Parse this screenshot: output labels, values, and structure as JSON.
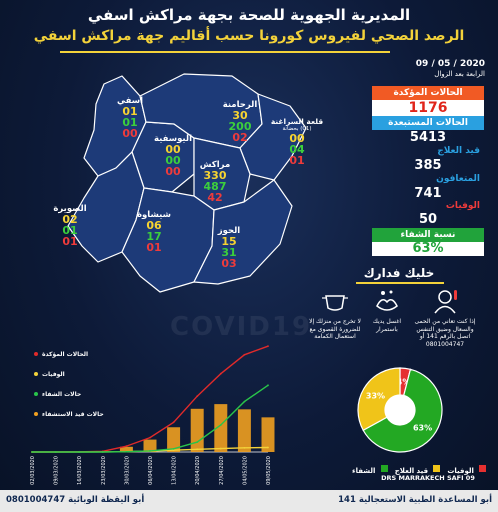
{
  "header": {
    "title": "المديرية الجهوية للصحة بجهة مراكش اسفي",
    "subtitle": "الرصد الصحي لفيروس كورونا حسب أقاليم جهة مراكش اسفي"
  },
  "date": {
    "value": "09 / 05 / 2020",
    "time": "الرابعة بعد الزوال"
  },
  "stats": {
    "confirmed_label": "الحالات المؤكدة",
    "confirmed": "1176",
    "excluded_label": "الحالات المستبعدة",
    "excluded": "5413",
    "treatment_label": "قيد العلاج",
    "treatment": "385",
    "recovered_label": "المتعافون",
    "recovered": "741",
    "deaths_label": "الوفيات",
    "deaths": "50",
    "recovery_rate_label": "نسبة الشفاء",
    "recovery_rate": "63%"
  },
  "regions": [
    {
      "name": "اسفي",
      "confirmed": "01",
      "recovered": "01",
      "deaths": "00"
    },
    {
      "name": "اليوسفية",
      "confirmed": "00",
      "recovered": "00",
      "deaths": "00"
    },
    {
      "name": "الرحامنة",
      "confirmed": "30",
      "recovered": "200",
      "deaths": "02"
    },
    {
      "name": "قلعة السراغنة",
      "extra": "(01) بحضانة",
      "confirmed": "00",
      "recovered": "04",
      "deaths": "01"
    },
    {
      "name": "مراكش",
      "confirmed": "330",
      "recovered": "487",
      "deaths": "42"
    },
    {
      "name": "الصويرة",
      "confirmed": "02",
      "recovered": "01",
      "deaths": "01"
    },
    {
      "name": "شيشاوة",
      "confirmed": "06",
      "recovered": "17",
      "deaths": "01"
    },
    {
      "name": "الحوز",
      "confirmed": "15",
      "recovered": "31",
      "deaths": "03"
    }
  ],
  "awareness": {
    "title": "خليك فدارك",
    "items": [
      "إذا كنت تعاني من الحمى والسعال وضيق التنفس اتصل بالرقم 141 أو 0801004747",
      "اغسل يديك باستمرار",
      "لا تخرج من منزلك إلا للضرورة القصوى مع استعمال الكمامة"
    ],
    "icons": [
      "fever-icon",
      "handwash-icon",
      "mask-icon"
    ]
  },
  "watermark": "COVID19",
  "chart_data": {
    "type": "line",
    "x": [
      "02/03/2020",
      "09/03/2020",
      "16/03/2020",
      "23/03/2020",
      "30/03/2020",
      "06/04/2020",
      "13/04/2020",
      "20/04/2020",
      "27/04/2020",
      "04/05/2020",
      "09/05/2020"
    ],
    "series": [
      {
        "name": "الحالات المؤكدة",
        "color": "#e02a2a",
        "values": [
          0,
          1,
          2,
          8,
          65,
          160,
          330,
          620,
          870,
          1080,
          1176
        ]
      },
      {
        "name": "الوفيات",
        "color": "#f3d23a",
        "values": [
          0,
          0,
          0,
          1,
          4,
          10,
          20,
          30,
          38,
          46,
          50
        ]
      },
      {
        "name": "حالات الشفاء",
        "color": "#29c44a",
        "values": [
          0,
          0,
          0,
          0,
          3,
          12,
          35,
          110,
          300,
          560,
          741
        ]
      },
      {
        "name": "حالات قيد الاستشفاء",
        "color": "#f0a020",
        "values": [
          0,
          1,
          2,
          7,
          58,
          138,
          275,
          480,
          532,
          474,
          385
        ]
      }
    ],
    "ylim": [
      0,
      1200
    ]
  },
  "pie": {
    "type": "pie",
    "slices": [
      {
        "name": "الشفاء",
        "value": 63,
        "label": "63%",
        "color": "#23a823"
      },
      {
        "name": "قيد العلاج",
        "value": 33,
        "label": "33%",
        "color": "#f0c419"
      },
      {
        "name": "الوفيات",
        "value": 4,
        "label": "4%",
        "color": "#e53030"
      }
    ]
  },
  "credit": "DRS MARRAKECH SAFI 09",
  "footer": {
    "left": "أبو اليقظة الوبائية 0801004747",
    "right": "أبو المساعدة الطبية الاستعجالية 141"
  }
}
